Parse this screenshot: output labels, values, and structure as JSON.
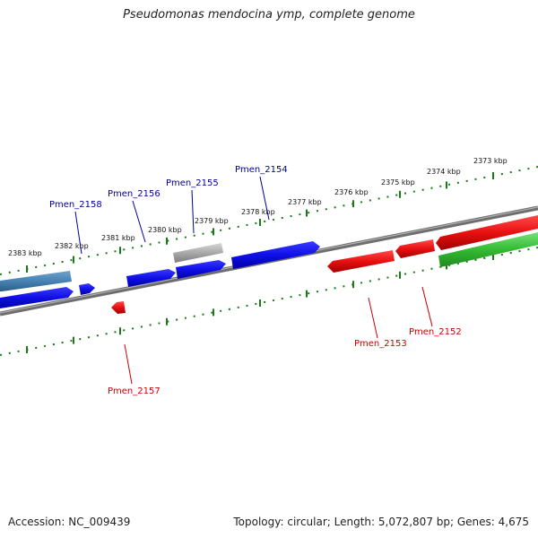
{
  "title": "Pseudomonas mendocina ymp, complete genome",
  "footer": {
    "accession": "Accession: NC_009439",
    "summary": "Topology: circular; Length: 5,072,807 bp; Genes: 4,675"
  },
  "scale_labels": [
    "2383 kbp",
    "2382 kbp",
    "2381 kbp",
    "2380 kbp",
    "2379 kbp",
    "2378 kbp",
    "2377 kbp",
    "2376 kbp",
    "2375 kbp",
    "2374 kbp",
    "2373 kbp"
  ],
  "gene_labels": [
    {
      "name": "Pmen_2158",
      "strand": "forward"
    },
    {
      "name": "Pmen_2156",
      "strand": "forward"
    },
    {
      "name": "Pmen_2155",
      "strand": "forward"
    },
    {
      "name": "Pmen_2154",
      "strand": "forward"
    },
    {
      "name": "Pmen_2157",
      "strand": "reverse"
    },
    {
      "name": "Pmen_2153",
      "strand": "reverse"
    },
    {
      "name": "Pmen_2152",
      "strand": "reverse"
    }
  ],
  "colors": {
    "forward_cds": "#1010e0",
    "reverse_cds": "#e01010",
    "forward_label": "#000099",
    "reverse_label": "#cc0000",
    "tick": "#1a7a1a",
    "backbone": "#777777",
    "other_feature_blue": "#4682b4",
    "other_feature_gray": "#a9a9a9",
    "other_feature_green": "#33bb33"
  }
}
